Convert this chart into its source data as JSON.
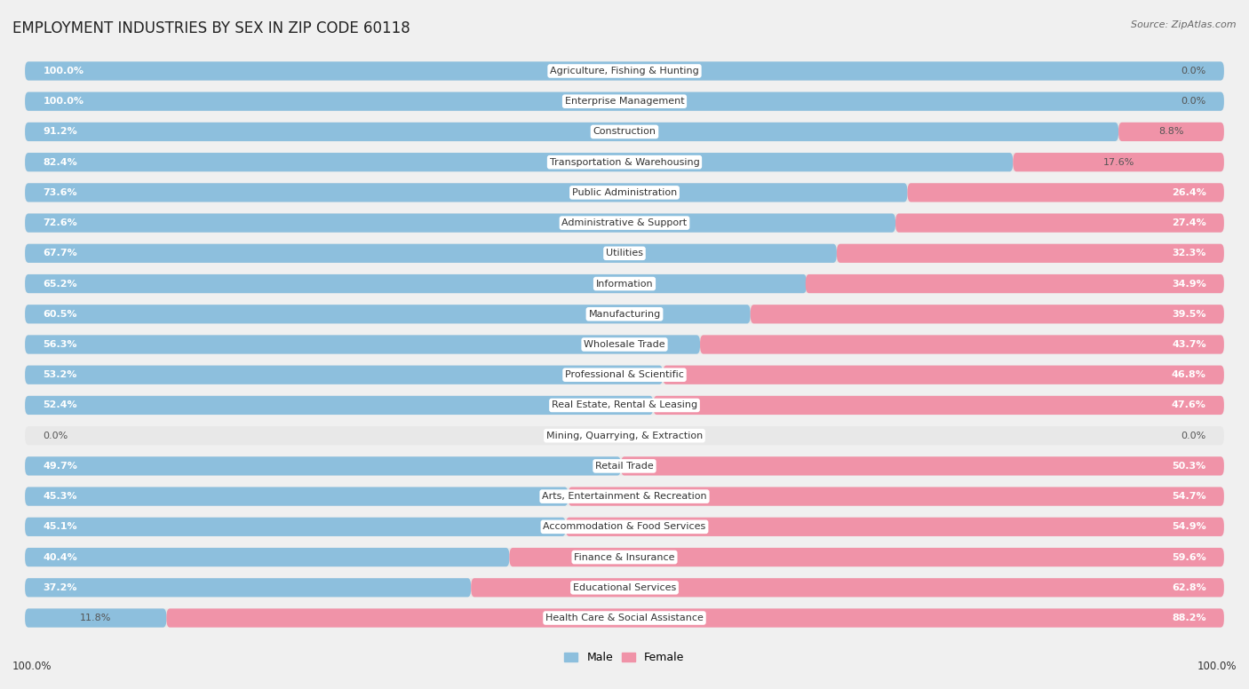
{
  "title": "EMPLOYMENT INDUSTRIES BY SEX IN ZIP CODE 60118",
  "source": "Source: ZipAtlas.com",
  "categories": [
    "Agriculture, Fishing & Hunting",
    "Enterprise Management",
    "Construction",
    "Transportation & Warehousing",
    "Public Administration",
    "Administrative & Support",
    "Utilities",
    "Information",
    "Manufacturing",
    "Wholesale Trade",
    "Professional & Scientific",
    "Real Estate, Rental & Leasing",
    "Mining, Quarrying, & Extraction",
    "Retail Trade",
    "Arts, Entertainment & Recreation",
    "Accommodation & Food Services",
    "Finance & Insurance",
    "Educational Services",
    "Health Care & Social Assistance"
  ],
  "male": [
    100.0,
    100.0,
    91.2,
    82.4,
    73.6,
    72.6,
    67.7,
    65.2,
    60.5,
    56.3,
    53.2,
    52.4,
    0.0,
    49.7,
    45.3,
    45.1,
    40.4,
    37.2,
    11.8
  ],
  "female": [
    0.0,
    0.0,
    8.8,
    17.6,
    26.4,
    27.4,
    32.3,
    34.9,
    39.5,
    43.7,
    46.8,
    47.6,
    0.0,
    50.3,
    54.7,
    54.9,
    59.6,
    62.8,
    88.2
  ],
  "male_color": "#8dbfdd",
  "female_color": "#f093a8",
  "bg_color": "#f0f0f0",
  "bar_bg_color": "#e8e8e8",
  "white_color": "#ffffff",
  "title_fontsize": 12,
  "source_fontsize": 8,
  "label_fontsize": 8,
  "category_fontsize": 8,
  "bar_height": 0.62
}
